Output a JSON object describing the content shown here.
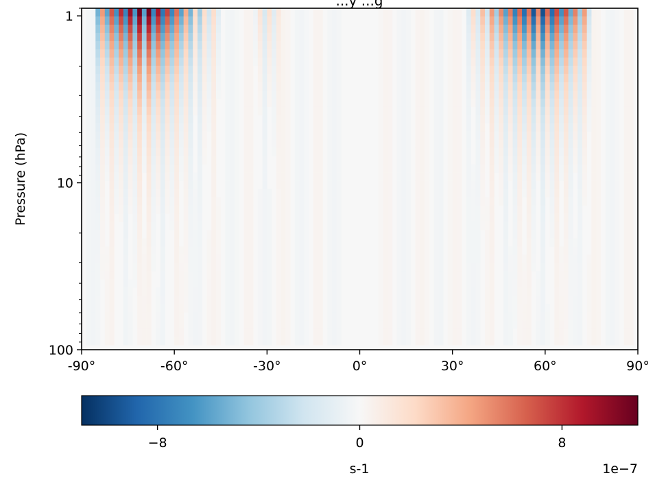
{
  "chart_data": {
    "type": "heatmap",
    "title": "...y ...g",
    "xlabel": "",
    "ylabel": "Pressure (hPa)",
    "x_ticks": [
      "-90°",
      "-60°",
      "-30°",
      "0°",
      "30°",
      "60°",
      "90°"
    ],
    "x_tick_values": [
      -90,
      -60,
      -30,
      0,
      30,
      60,
      90
    ],
    "y_scale": "log",
    "y_inverted": true,
    "y_ticks": [
      "1",
      "10",
      "100"
    ],
    "y_tick_values": [
      1,
      10,
      100
    ],
    "xlim": [
      -90,
      90
    ],
    "ylim": [
      100,
      0.9
    ],
    "colormap": "RdBu_r",
    "colormap_stops": [
      "#053061",
      "#2166ac",
      "#4393c3",
      "#92c5de",
      "#d1e5f0",
      "#f7f7f7",
      "#fddbc7",
      "#f4a582",
      "#d6604d",
      "#b2182b",
      "#67001f"
    ],
    "colorbar": {
      "label": "s-1",
      "ticks": [
        "−8",
        "0",
        "8"
      ],
      "tick_values": [
        -8,
        0,
        8
      ],
      "range": [
        -11,
        11
      ],
      "offset_text": "1e−7"
    },
    "bands": [
      {
        "lat_min": -85,
        "lat_max": -45,
        "peak_lat": -70,
        "peak_value": 10,
        "top_p": 1,
        "bottom_p": 100
      },
      {
        "lat_min": 35,
        "lat_max": 75,
        "peak_lat": 58,
        "peak_value": 9,
        "top_p": 1,
        "bottom_p": 100
      },
      {
        "lat_min": -35,
        "lat_max": -25,
        "peak_lat": -30,
        "peak_value": 2,
        "top_p": 1,
        "bottom_p": 10
      }
    ]
  }
}
